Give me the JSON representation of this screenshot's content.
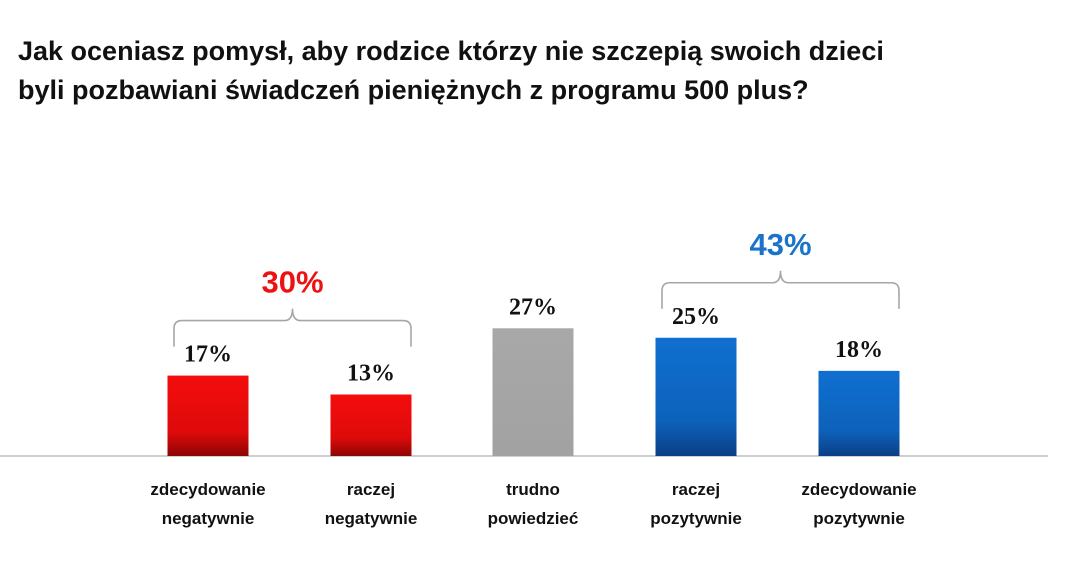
{
  "title_lines": [
    "Jak oceniasz pomysł, aby rodzice którzy nie szczepią swoich dzieci",
    "byli pozbawiani świadczeń pieniężnych z programu 500 plus?"
  ],
  "chart_data": {
    "type": "bar",
    "categories": [
      [
        "zdecydowanie",
        "negatywnie"
      ],
      [
        "raczej",
        "negatywnie"
      ],
      [
        "trudno",
        "powiedzieć"
      ],
      [
        "raczej",
        "pozytywnie"
      ],
      [
        "zdecydowanie",
        "pozytywnie"
      ]
    ],
    "values": [
      17,
      13,
      27,
      25,
      18
    ],
    "value_labels": [
      "17%",
      "13%",
      "27%",
      "25%",
      "18%"
    ],
    "colors": [
      "#e41a1a",
      "#e41a1a",
      "#a6a6a6",
      "#1565c0",
      "#1565c0"
    ],
    "ylim": [
      0,
      30
    ],
    "groups": [
      {
        "label": "30%",
        "color": "#ee1111",
        "from": 0,
        "to": 1
      },
      {
        "label": "43%",
        "color": "#1a73c8",
        "from": 3,
        "to": 4
      }
    ]
  }
}
